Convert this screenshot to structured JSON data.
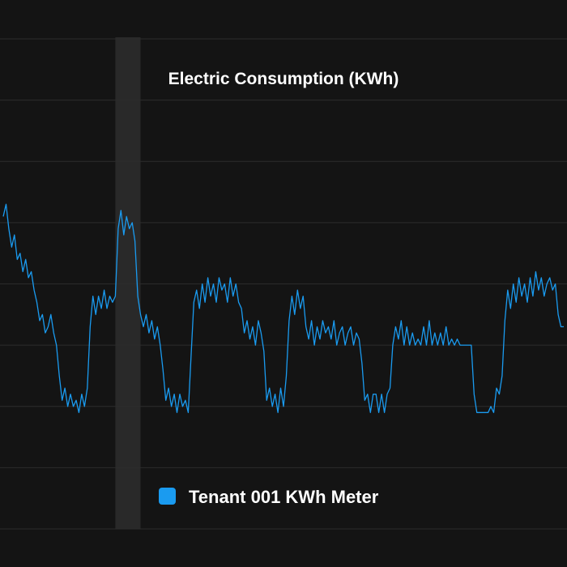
{
  "chart_data": {
    "type": "line",
    "title": "Electric Consumption (KWh)",
    "xlabel": "",
    "ylabel": "",
    "x_range": [
      0,
      100
    ],
    "ylim": [
      0,
      8
    ],
    "grid": true,
    "legend_position": "bottom",
    "highlight_band": [
      20,
      24.5
    ],
    "series": [
      {
        "name": "Tenant 001 KWh Meter",
        "color": "#1a9bf0",
        "points": [
          [
            0,
            5.1
          ],
          [
            0.5,
            5.3
          ],
          [
            1,
            4.9
          ],
          [
            1.5,
            4.6
          ],
          [
            2,
            4.8
          ],
          [
            2.5,
            4.4
          ],
          [
            3,
            4.5
          ],
          [
            3.5,
            4.2
          ],
          [
            4,
            4.4
          ],
          [
            4.5,
            4.1
          ],
          [
            5,
            4.2
          ],
          [
            5.5,
            3.9
          ],
          [
            6,
            3.7
          ],
          [
            6.5,
            3.4
          ],
          [
            7,
            3.5
          ],
          [
            7.5,
            3.2
          ],
          [
            8,
            3.3
          ],
          [
            8.5,
            3.5
          ],
          [
            9,
            3.2
          ],
          [
            9.5,
            3.0
          ],
          [
            10,
            2.5
          ],
          [
            10.5,
            2.1
          ],
          [
            11,
            2.3
          ],
          [
            11.5,
            2.0
          ],
          [
            12,
            2.2
          ],
          [
            12.5,
            2.0
          ],
          [
            13,
            2.1
          ],
          [
            13.5,
            1.9
          ],
          [
            14,
            2.2
          ],
          [
            14.5,
            2.0
          ],
          [
            15,
            2.3
          ],
          [
            15.5,
            3.3
          ],
          [
            16,
            3.8
          ],
          [
            16.5,
            3.5
          ],
          [
            17,
            3.8
          ],
          [
            17.5,
            3.6
          ],
          [
            18,
            3.9
          ],
          [
            18.5,
            3.6
          ],
          [
            19,
            3.8
          ],
          [
            19.5,
            3.7
          ],
          [
            20,
            3.8
          ],
          [
            20.5,
            4.9
          ],
          [
            21,
            5.2
          ],
          [
            21.5,
            4.8
          ],
          [
            22,
            5.1
          ],
          [
            22.5,
            4.9
          ],
          [
            23,
            5.0
          ],
          [
            23.5,
            4.7
          ],
          [
            24,
            3.8
          ],
          [
            24.5,
            3.5
          ],
          [
            25,
            3.3
          ],
          [
            25.5,
            3.5
          ],
          [
            26,
            3.2
          ],
          [
            26.5,
            3.4
          ],
          [
            27,
            3.1
          ],
          [
            27.5,
            3.3
          ],
          [
            28,
            3.0
          ],
          [
            28.5,
            2.6
          ],
          [
            29,
            2.1
          ],
          [
            29.5,
            2.3
          ],
          [
            30,
            2.0
          ],
          [
            30.5,
            2.2
          ],
          [
            31,
            1.9
          ],
          [
            31.5,
            2.2
          ],
          [
            32,
            2.0
          ],
          [
            32.5,
            2.1
          ],
          [
            33,
            1.9
          ],
          [
            33.5,
            2.8
          ],
          [
            34,
            3.7
          ],
          [
            34.5,
            3.9
          ],
          [
            35,
            3.6
          ],
          [
            35.5,
            4.0
          ],
          [
            36,
            3.7
          ],
          [
            36.5,
            4.1
          ],
          [
            37,
            3.8
          ],
          [
            37.5,
            4.0
          ],
          [
            38,
            3.7
          ],
          [
            38.5,
            4.1
          ],
          [
            39,
            3.9
          ],
          [
            39.5,
            4.0
          ],
          [
            40,
            3.7
          ],
          [
            40.5,
            4.1
          ],
          [
            41,
            3.8
          ],
          [
            41.5,
            4.0
          ],
          [
            42,
            3.7
          ],
          [
            42.5,
            3.6
          ],
          [
            43,
            3.2
          ],
          [
            43.5,
            3.4
          ],
          [
            44,
            3.1
          ],
          [
            44.5,
            3.3
          ],
          [
            45,
            3.0
          ],
          [
            45.5,
            3.4
          ],
          [
            46,
            3.2
          ],
          [
            46.5,
            2.9
          ],
          [
            47,
            2.1
          ],
          [
            47.5,
            2.3
          ],
          [
            48,
            2.0
          ],
          [
            48.5,
            2.2
          ],
          [
            49,
            1.9
          ],
          [
            49.5,
            2.3
          ],
          [
            50,
            2.0
          ],
          [
            50.5,
            2.5
          ],
          [
            51,
            3.4
          ],
          [
            51.5,
            3.8
          ],
          [
            52,
            3.5
          ],
          [
            52.5,
            3.9
          ],
          [
            53,
            3.6
          ],
          [
            53.5,
            3.8
          ],
          [
            54,
            3.3
          ],
          [
            54.5,
            3.1
          ],
          [
            55,
            3.4
          ],
          [
            55.5,
            3.0
          ],
          [
            56,
            3.3
          ],
          [
            56.5,
            3.1
          ],
          [
            57,
            3.4
          ],
          [
            57.5,
            3.2
          ],
          [
            58,
            3.3
          ],
          [
            58.5,
            3.1
          ],
          [
            59,
            3.4
          ],
          [
            59.5,
            3.0
          ],
          [
            60,
            3.2
          ],
          [
            60.5,
            3.3
          ],
          [
            61,
            3.0
          ],
          [
            61.5,
            3.2
          ],
          [
            62,
            3.3
          ],
          [
            62.5,
            3.0
          ],
          [
            63,
            3.2
          ],
          [
            63.5,
            3.1
          ],
          [
            64,
            2.7
          ],
          [
            64.5,
            2.1
          ],
          [
            65,
            2.2
          ],
          [
            65.5,
            1.9
          ],
          [
            66,
            2.2
          ],
          [
            66.5,
            2.2
          ],
          [
            67,
            1.9
          ],
          [
            67.5,
            2.2
          ],
          [
            68,
            1.9
          ],
          [
            68.5,
            2.2
          ],
          [
            69,
            2.3
          ],
          [
            69.5,
            3.0
          ],
          [
            70,
            3.3
          ],
          [
            70.5,
            3.1
          ],
          [
            71,
            3.4
          ],
          [
            71.5,
            3.0
          ],
          [
            72,
            3.3
          ],
          [
            72.5,
            3.0
          ],
          [
            73,
            3.2
          ],
          [
            73.5,
            3.0
          ],
          [
            74,
            3.1
          ],
          [
            74.5,
            3.0
          ],
          [
            75,
            3.3
          ],
          [
            75.5,
            3.0
          ],
          [
            76,
            3.4
          ],
          [
            76.5,
            3.0
          ],
          [
            77,
            3.2
          ],
          [
            77.5,
            3.0
          ],
          [
            78,
            3.2
          ],
          [
            78.5,
            3.0
          ],
          [
            79,
            3.3
          ],
          [
            79.5,
            3.0
          ],
          [
            80,
            3.1
          ],
          [
            80.5,
            3.0
          ],
          [
            81,
            3.1
          ],
          [
            81.5,
            3.0
          ],
          [
            82,
            3.0
          ],
          [
            82.5,
            3.0
          ],
          [
            83,
            3.0
          ],
          [
            83.5,
            3.0
          ],
          [
            84,
            2.2
          ],
          [
            84.5,
            1.9
          ],
          [
            85,
            1.9
          ],
          [
            85.5,
            1.9
          ],
          [
            86,
            1.9
          ],
          [
            86.5,
            1.9
          ],
          [
            87,
            2.0
          ],
          [
            87.5,
            1.9
          ],
          [
            88,
            2.3
          ],
          [
            88.5,
            2.2
          ],
          [
            89,
            2.5
          ],
          [
            89.5,
            3.4
          ],
          [
            90,
            3.9
          ],
          [
            90.5,
            3.6
          ],
          [
            91,
            4.0
          ],
          [
            91.5,
            3.7
          ],
          [
            92,
            4.1
          ],
          [
            92.5,
            3.8
          ],
          [
            93,
            4.0
          ],
          [
            93.5,
            3.7
          ],
          [
            94,
            4.1
          ],
          [
            94.5,
            3.8
          ],
          [
            95,
            4.2
          ],
          [
            95.5,
            3.9
          ],
          [
            96,
            4.1
          ],
          [
            96.5,
            3.8
          ],
          [
            97,
            4.0
          ],
          [
            97.5,
            4.1
          ],
          [
            98,
            3.9
          ],
          [
            98.5,
            4.0
          ],
          [
            99,
            3.5
          ],
          [
            99.5,
            3.3
          ],
          [
            100,
            3.3
          ]
        ]
      }
    ]
  }
}
